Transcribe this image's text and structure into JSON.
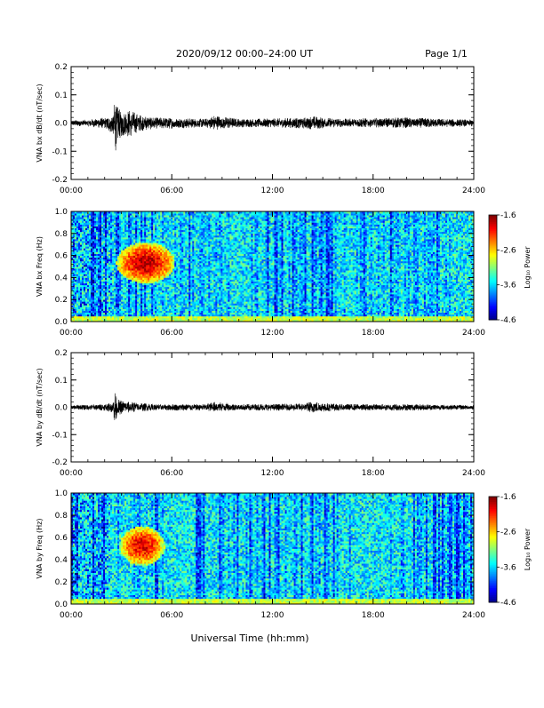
{
  "header": {
    "title": "2020/09/12  00:00–24:00 UT",
    "page": "Page 1/1"
  },
  "footer": {
    "xlabel": "Universal Time (hh:mm)"
  },
  "colorbar": {
    "label": "Log₁₀ Power",
    "ticks": [
      "-1.6",
      "-2.6",
      "-3.6",
      "-4.6"
    ],
    "range": [
      -4.6,
      -1.6
    ]
  },
  "chart_data": [
    {
      "type": "line",
      "ylabel": "VNA bx dB/dt (nT/sec)",
      "xlim": [
        0,
        24
      ],
      "ylim": [
        -0.2,
        0.2
      ],
      "xticks": [
        "00:00",
        "06:00",
        "12:00",
        "18:00",
        "24:00"
      ],
      "yticks": [
        "-0.2",
        "-0.1",
        "0.0",
        "0.1",
        "0.2"
      ],
      "series": [
        {
          "x": [
            0,
            1,
            2,
            2.5,
            2.65,
            2.7,
            2.75,
            3,
            3.5,
            4,
            5,
            6,
            8,
            8.5,
            10,
            12,
            14,
            14.3,
            16,
            18,
            20,
            22,
            24
          ],
          "ymax": [
            0.01,
            0.012,
            0.02,
            0.03,
            0.11,
            0.05,
            0.06,
            0.04,
            0.05,
            0.03,
            0.02,
            0.018,
            0.015,
            0.028,
            0.015,
            0.016,
            0.02,
            0.025,
            0.015,
            0.018,
            0.02,
            0.015,
            0.012
          ],
          "ymin": [
            -0.01,
            -0.012,
            -0.02,
            -0.04,
            -0.14,
            -0.06,
            -0.07,
            -0.05,
            -0.05,
            -0.03,
            -0.02,
            -0.02,
            -0.015,
            -0.025,
            -0.015,
            -0.015,
            -0.02,
            -0.022,
            -0.015,
            -0.015,
            -0.018,
            -0.015,
            -0.012
          ]
        }
      ]
    },
    {
      "type": "heatmap",
      "ylabel": "VNA bx Freq (Hz)",
      "xlim": [
        0,
        24
      ],
      "ylim": [
        0,
        1.0
      ],
      "xticks": [
        "00:00",
        "06:00",
        "12:00",
        "18:00",
        "24:00"
      ],
      "yticks": [
        "0.0",
        "0.2",
        "0.4",
        "0.6",
        "0.8",
        "1.0"
      ],
      "zlim": [
        -4.6,
        -1.6
      ],
      "enhancement": {
        "t_range": [
          2.7,
          6.2
        ],
        "f_range": [
          0.35,
          0.72
        ],
        "peak": -1.8
      }
    },
    {
      "type": "line",
      "ylabel": "VNA by dB/dt (nT/sec)",
      "xlim": [
        0,
        24
      ],
      "ylim": [
        -0.2,
        0.2
      ],
      "xticks": [
        "00:00",
        "06:00",
        "12:00",
        "18:00",
        "24:00"
      ],
      "yticks": [
        "-0.2",
        "-0.1",
        "0.0",
        "0.1",
        "0.2"
      ],
      "series": [
        {
          "x": [
            0,
            1,
            2,
            2.5,
            2.65,
            2.7,
            2.75,
            3,
            3.5,
            4,
            5,
            6,
            8,
            8.5,
            10,
            12,
            14,
            14.3,
            16,
            18,
            20,
            22,
            24
          ],
          "ymax": [
            0.008,
            0.01,
            0.012,
            0.02,
            0.07,
            0.035,
            0.03,
            0.025,
            0.02,
            0.018,
            0.012,
            0.012,
            0.012,
            0.02,
            0.012,
            0.012,
            0.015,
            0.022,
            0.012,
            0.012,
            0.012,
            0.01,
            0.008
          ],
          "ymin": [
            -0.008,
            -0.01,
            -0.012,
            -0.02,
            -0.085,
            -0.04,
            -0.03,
            -0.025,
            -0.02,
            -0.015,
            -0.012,
            -0.012,
            -0.012,
            -0.015,
            -0.012,
            -0.012,
            -0.014,
            -0.02,
            -0.012,
            -0.012,
            -0.012,
            -0.01,
            -0.008
          ]
        }
      ]
    },
    {
      "type": "heatmap",
      "ylabel": "VNA by Freq (Hz)",
      "xlim": [
        0,
        24
      ],
      "ylim": [
        0,
        1.0
      ],
      "xticks": [
        "00:00",
        "06:00",
        "12:00",
        "18:00",
        "24:00"
      ],
      "yticks": [
        "0.0",
        "0.2",
        "0.4",
        "0.6",
        "0.8",
        "1.0"
      ],
      "zlim": [
        -4.6,
        -1.6
      ],
      "enhancement": {
        "t_range": [
          2.9,
          5.6
        ],
        "f_range": [
          0.35,
          0.7
        ],
        "peak": -1.9
      }
    }
  ]
}
